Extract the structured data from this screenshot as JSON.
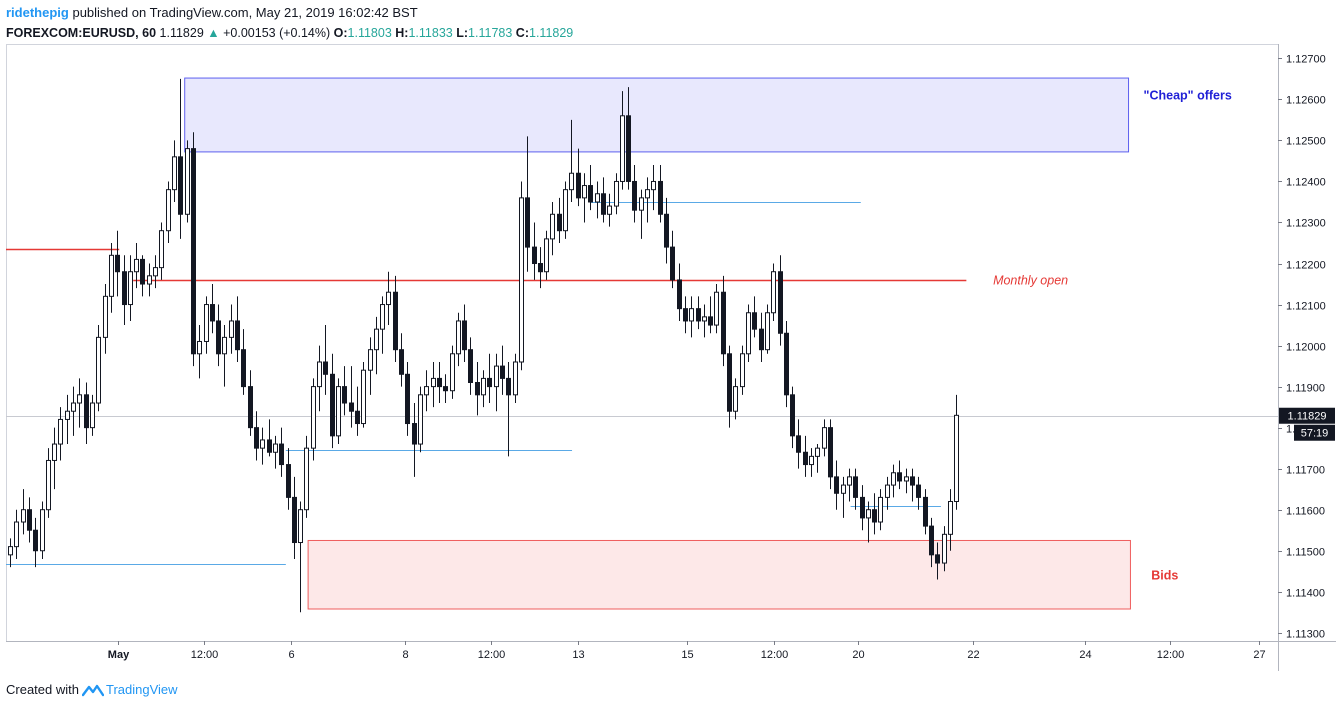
{
  "header": {
    "author": "ridethepig",
    "published_text": "published on TradingView.com, May 21, 2019 16:02:42 BST",
    "symbol": "FOREXCOM:EURUSD, 60",
    "last": "1.11829",
    "change_arrow": "▲",
    "change": "+0.00153 (+0.14%)",
    "o_label": "O:",
    "o_value": "1.11803",
    "h_label": "H:",
    "h_value": "1.11833",
    "l_label": "L:",
    "l_value": "1.11783",
    "c_label": "C:",
    "c_value": "1.11829"
  },
  "footer": {
    "created_with": "Created with",
    "brand": "TradingView",
    "logo_icon": "tradingview-logo-icon"
  },
  "colors": {
    "candle": "#131722",
    "cheap_zone_fill": "#e8e8fd",
    "cheap_zone_border": "#5d5fef",
    "bids_zone_fill": "#fde8e8",
    "bids_zone_border": "#ef5d5d",
    "red_line": "#e53935",
    "blue_line": "#5aa9e6",
    "label_blue": "#1f1fd6",
    "label_red": "#e53935",
    "last_price_bg": "#131722",
    "grid": "#ecedf0"
  },
  "chart_data": {
    "type": "candlestick",
    "instrument": "FOREXCOM:EURUSD",
    "timeframe": "60",
    "y_axis": {
      "ticks": [
        "1.11300",
        "1.11400",
        "1.11500",
        "1.11600",
        "1.11700",
        "1.11800",
        "1.11900",
        "1.12000",
        "1.12100",
        "1.12200",
        "1.12300",
        "1.12400",
        "1.12500",
        "1.12600",
        "1.12700"
      ],
      "ylim": [
        1.1128,
        1.12735
      ]
    },
    "x_axis": {
      "ticks": [
        "May",
        "12:00",
        "6",
        "8",
        "12:00",
        "13",
        "15",
        "12:00",
        "20",
        "22",
        "24",
        "12:00",
        "27"
      ]
    },
    "last_price": "1.11829",
    "countdown": "57:19",
    "zones": [
      {
        "name": "cheap-offers-zone",
        "label": "\"Cheap\" offers",
        "low": 1.12472,
        "high": 1.12652
      },
      {
        "name": "bids-zone",
        "label": "Bids",
        "low": 1.11358,
        "high": 1.11525
      }
    ],
    "lines": [
      {
        "name": "monthly-open-line",
        "label": "Monthly open",
        "price": 1.12159
      },
      {
        "name": "red-line-left",
        "label": "",
        "price": 1.12235
      }
    ],
    "series": [
      {
        "values": [
          [
            1.1149,
            1.1153,
            1.1146,
            1.1151
          ],
          [
            1.1151,
            1.116,
            1.1148,
            1.1157
          ],
          [
            1.1157,
            1.1165,
            1.1154,
            1.116
          ],
          [
            1.116,
            1.1163,
            1.1152,
            1.1155
          ],
          [
            1.1155,
            1.1158,
            1.1146,
            1.115
          ],
          [
            1.115,
            1.1162,
            1.1148,
            1.116
          ],
          [
            1.116,
            1.1175,
            1.1158,
            1.1172
          ],
          [
            1.1172,
            1.118,
            1.1165,
            1.1176
          ],
          [
            1.1176,
            1.1185,
            1.1172,
            1.1182
          ],
          [
            1.1182,
            1.1188,
            1.1176,
            1.1184
          ],
          [
            1.1184,
            1.119,
            1.1178,
            1.1186
          ],
          [
            1.1186,
            1.1192,
            1.118,
            1.1188
          ],
          [
            1.1188,
            1.1191,
            1.1176,
            1.118
          ],
          [
            1.118,
            1.1188,
            1.1178,
            1.1186
          ],
          [
            1.1186,
            1.1205,
            1.1184,
            1.1202
          ],
          [
            1.1202,
            1.1215,
            1.1198,
            1.1212
          ],
          [
            1.1212,
            1.1225,
            1.1208,
            1.1222
          ],
          [
            1.1222,
            1.1228,
            1.1212,
            1.1218
          ],
          [
            1.1218,
            1.1222,
            1.1205,
            1.121
          ],
          [
            1.121,
            1.1222,
            1.1206,
            1.1218
          ],
          [
            1.1218,
            1.1225,
            1.1214,
            1.1221
          ],
          [
            1.1221,
            1.1222,
            1.1212,
            1.1215
          ],
          [
            1.1215,
            1.122,
            1.1212,
            1.1217
          ],
          [
            1.1217,
            1.1222,
            1.1214,
            1.1219
          ],
          [
            1.1219,
            1.123,
            1.1216,
            1.1228
          ],
          [
            1.1228,
            1.124,
            1.1225,
            1.1238
          ],
          [
            1.1238,
            1.125,
            1.1235,
            1.1246
          ],
          [
            1.1246,
            1.1265,
            1.1226,
            1.1232
          ],
          [
            1.1232,
            1.125,
            1.123,
            1.1248
          ],
          [
            1.1248,
            1.1252,
            1.1195,
            1.1198
          ],
          [
            1.1198,
            1.1205,
            1.1192,
            1.1201
          ],
          [
            1.1201,
            1.1212,
            1.1198,
            1.121
          ],
          [
            1.121,
            1.1215,
            1.1203,
            1.1206
          ],
          [
            1.1206,
            1.121,
            1.1195,
            1.1198
          ],
          [
            1.1198,
            1.1205,
            1.119,
            1.1202
          ],
          [
            1.1202,
            1.121,
            1.1198,
            1.1206
          ],
          [
            1.1206,
            1.1212,
            1.1196,
            1.1199
          ],
          [
            1.1199,
            1.1204,
            1.1188,
            1.119
          ],
          [
            1.119,
            1.1194,
            1.1178,
            1.118
          ],
          [
            1.118,
            1.1184,
            1.1172,
            1.1175
          ],
          [
            1.1175,
            1.118,
            1.1171,
            1.1177
          ],
          [
            1.1177,
            1.1182,
            1.1173,
            1.1174
          ],
          [
            1.1174,
            1.1178,
            1.117,
            1.1176
          ],
          [
            1.1176,
            1.118,
            1.1168,
            1.1171
          ],
          [
            1.1171,
            1.1175,
            1.116,
            1.1163
          ],
          [
            1.1163,
            1.1168,
            1.1148,
            1.1152
          ],
          [
            1.1152,
            1.1162,
            1.1135,
            1.116
          ],
          [
            1.116,
            1.1178,
            1.1158,
            1.1175
          ],
          [
            1.1175,
            1.1192,
            1.1172,
            1.119
          ],
          [
            1.119,
            1.12,
            1.1184,
            1.1196
          ],
          [
            1.1196,
            1.1205,
            1.1188,
            1.1193
          ],
          [
            1.1193,
            1.1198,
            1.1175,
            1.1178
          ],
          [
            1.1178,
            1.1192,
            1.1176,
            1.119
          ],
          [
            1.119,
            1.1195,
            1.1183,
            1.1186
          ],
          [
            1.1186,
            1.1195,
            1.118,
            1.1184
          ],
          [
            1.1184,
            1.119,
            1.1178,
            1.1181
          ],
          [
            1.1181,
            1.1196,
            1.118,
            1.1194
          ],
          [
            1.1194,
            1.1202,
            1.1188,
            1.1199
          ],
          [
            1.1199,
            1.1207,
            1.1193,
            1.1204
          ],
          [
            1.1204,
            1.1212,
            1.1198,
            1.121
          ],
          [
            1.121,
            1.1218,
            1.1205,
            1.1213
          ],
          [
            1.1213,
            1.1217,
            1.1196,
            1.1199
          ],
          [
            1.1199,
            1.1203,
            1.119,
            1.1193
          ],
          [
            1.1193,
            1.1196,
            1.1178,
            1.1181
          ],
          [
            1.1181,
            1.1186,
            1.1168,
            1.1176
          ],
          [
            1.1176,
            1.119,
            1.1174,
            1.1188
          ],
          [
            1.1188,
            1.1194,
            1.1184,
            1.119
          ],
          [
            1.119,
            1.1196,
            1.1185,
            1.1192
          ],
          [
            1.1192,
            1.1196,
            1.1186,
            1.119
          ],
          [
            1.119,
            1.1193,
            1.1186,
            1.1189
          ],
          [
            1.1189,
            1.12,
            1.1187,
            1.1198
          ],
          [
            1.1198,
            1.1208,
            1.1195,
            1.1206
          ],
          [
            1.1206,
            1.121,
            1.1196,
            1.1199
          ],
          [
            1.1199,
            1.1202,
            1.1188,
            1.1191
          ],
          [
            1.1191,
            1.1196,
            1.1183,
            1.1188
          ],
          [
            1.1188,
            1.1194,
            1.1185,
            1.1192
          ],
          [
            1.1192,
            1.1198,
            1.1186,
            1.119
          ],
          [
            1.119,
            1.1198,
            1.1184,
            1.1195
          ],
          [
            1.1195,
            1.12,
            1.1188,
            1.1192
          ],
          [
            1.1192,
            1.1196,
            1.1173,
            1.1188
          ],
          [
            1.1188,
            1.1198,
            1.1186,
            1.1196
          ],
          [
            1.1196,
            1.124,
            1.1194,
            1.1236
          ],
          [
            1.1236,
            1.1251,
            1.1218,
            1.1224
          ],
          [
            1.1224,
            1.123,
            1.1216,
            1.122
          ],
          [
            1.122,
            1.1224,
            1.1214,
            1.1218
          ],
          [
            1.1218,
            1.1228,
            1.1216,
            1.1226
          ],
          [
            1.1226,
            1.1235,
            1.1222,
            1.1232
          ],
          [
            1.1232,
            1.1236,
            1.1225,
            1.1228
          ],
          [
            1.1228,
            1.124,
            1.1226,
            1.1238
          ],
          [
            1.1238,
            1.1255,
            1.1235,
            1.1242
          ],
          [
            1.1242,
            1.1248,
            1.1234,
            1.1236
          ],
          [
            1.1236,
            1.1242,
            1.123,
            1.1239
          ],
          [
            1.1239,
            1.1244,
            1.1233,
            1.1235
          ],
          [
            1.1235,
            1.124,
            1.1231,
            1.1237
          ],
          [
            1.1237,
            1.1241,
            1.123,
            1.1232
          ],
          [
            1.1232,
            1.1237,
            1.1229,
            1.1234
          ],
          [
            1.1234,
            1.1242,
            1.1232,
            1.124
          ],
          [
            1.124,
            1.1262,
            1.1238,
            1.1256
          ],
          [
            1.1256,
            1.1263,
            1.1238,
            1.124
          ],
          [
            1.124,
            1.1244,
            1.123,
            1.1233
          ],
          [
            1.1233,
            1.1238,
            1.1226,
            1.1236
          ],
          [
            1.1236,
            1.1241,
            1.123,
            1.1238
          ],
          [
            1.1238,
            1.1244,
            1.1233,
            1.124
          ],
          [
            1.124,
            1.1244,
            1.123,
            1.1232
          ],
          [
            1.1232,
            1.1236,
            1.122,
            1.1224
          ],
          [
            1.1224,
            1.1228,
            1.1214,
            1.1216
          ],
          [
            1.1216,
            1.122,
            1.1206,
            1.1209
          ],
          [
            1.1209,
            1.1212,
            1.1203,
            1.1206
          ],
          [
            1.1206,
            1.1212,
            1.1202,
            1.1209
          ],
          [
            1.1209,
            1.1212,
            1.1204,
            1.1206
          ],
          [
            1.1206,
            1.121,
            1.1202,
            1.1207
          ],
          [
            1.1207,
            1.1212,
            1.1203,
            1.1205
          ],
          [
            1.1205,
            1.1215,
            1.1203,
            1.1213
          ],
          [
            1.1213,
            1.1217,
            1.1195,
            1.1198
          ],
          [
            1.1198,
            1.12,
            1.118,
            1.1184
          ],
          [
            1.1184,
            1.1192,
            1.1182,
            1.119
          ],
          [
            1.119,
            1.12,
            1.1188,
            1.1198
          ],
          [
            1.1198,
            1.121,
            1.1196,
            1.1208
          ],
          [
            1.1208,
            1.1212,
            1.1202,
            1.1204
          ],
          [
            1.1204,
            1.1208,
            1.1196,
            1.1199
          ],
          [
            1.1199,
            1.121,
            1.1198,
            1.1208
          ],
          [
            1.1208,
            1.122,
            1.1206,
            1.1218
          ],
          [
            1.1218,
            1.1222,
            1.12,
            1.1203
          ],
          [
            1.1203,
            1.1206,
            1.1185,
            1.1188
          ],
          [
            1.1188,
            1.119,
            1.1175,
            1.1178
          ],
          [
            1.1178,
            1.1182,
            1.117,
            1.1174
          ],
          [
            1.1174,
            1.1178,
            1.1168,
            1.1171
          ],
          [
            1.1171,
            1.1175,
            1.1168,
            1.1173
          ],
          [
            1.1173,
            1.1176,
            1.1169,
            1.1175
          ],
          [
            1.1175,
            1.1182,
            1.1173,
            1.118
          ],
          [
            1.118,
            1.1182,
            1.1165,
            1.1168
          ],
          [
            1.1168,
            1.1172,
            1.116,
            1.1164
          ],
          [
            1.1164,
            1.1168,
            1.1158,
            1.1166
          ],
          [
            1.1166,
            1.117,
            1.1162,
            1.1168
          ],
          [
            1.1168,
            1.117,
            1.116,
            1.1163
          ],
          [
            1.1163,
            1.1166,
            1.1155,
            1.1158
          ],
          [
            1.1158,
            1.1162,
            1.1152,
            1.116
          ],
          [
            1.116,
            1.1164,
            1.1154,
            1.1157
          ],
          [
            1.1157,
            1.1165,
            1.1155,
            1.1163
          ],
          [
            1.1163,
            1.1168,
            1.116,
            1.1166
          ],
          [
            1.1166,
            1.1171,
            1.1163,
            1.1169
          ],
          [
            1.1169,
            1.1172,
            1.1165,
            1.1167
          ],
          [
            1.1167,
            1.117,
            1.1164,
            1.1168
          ],
          [
            1.1168,
            1.117,
            1.1162,
            1.1166
          ],
          [
            1.1166,
            1.1168,
            1.116,
            1.1163
          ],
          [
            1.1163,
            1.1165,
            1.1154,
            1.1156
          ],
          [
            1.1156,
            1.1158,
            1.1146,
            1.1149
          ],
          [
            1.1149,
            1.1152,
            1.1143,
            1.1147
          ],
          [
            1.1147,
            1.1156,
            1.1145,
            1.1154
          ],
          [
            1.1154,
            1.1165,
            1.115,
            1.1162
          ],
          [
            1.1162,
            1.1188,
            1.116,
            1.1183
          ]
        ]
      }
    ]
  },
  "annotations": {
    "cheap_offers": "\"Cheap\" offers",
    "monthly_open": "Monthly open",
    "bids": "Bids"
  }
}
